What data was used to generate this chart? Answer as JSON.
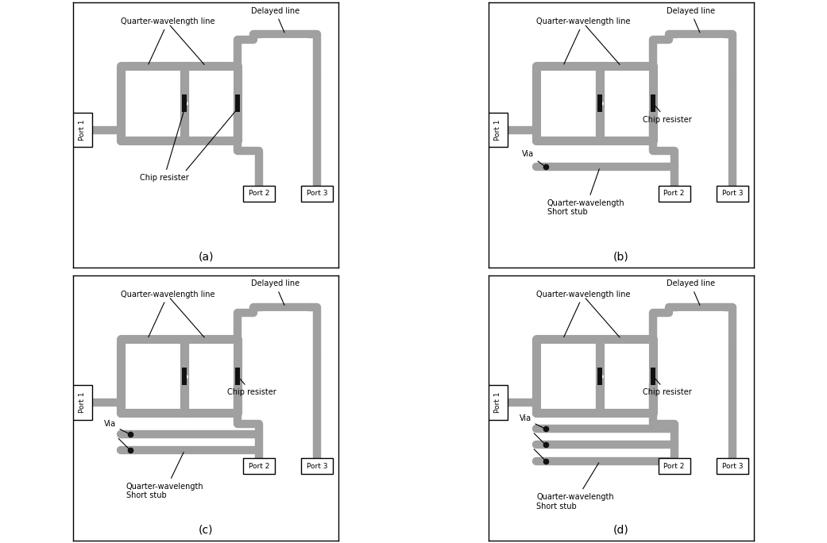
{
  "fig_width": 10.41,
  "fig_height": 6.84,
  "trace_color": "#a0a0a0",
  "bg_color": "#ffffff",
  "chip_color": "#111111",
  "sublabels": [
    "(a)",
    "(b)",
    "(c)",
    "(d)"
  ],
  "stub_counts": [
    0,
    1,
    2,
    3
  ],
  "font_size_label": 7.0,
  "font_size_port": 6.5,
  "font_size_sublabel": 10,
  "labels": {
    "qw_line": "Quarter-wavelength line",
    "delayed": "Delayed line",
    "chip": "Chip resister",
    "via": "Via",
    "short_stub": "Quarter-wavelength\nShort stub",
    "port1": "Port 1",
    "port2": "Port 2",
    "port3": "Port 3"
  }
}
